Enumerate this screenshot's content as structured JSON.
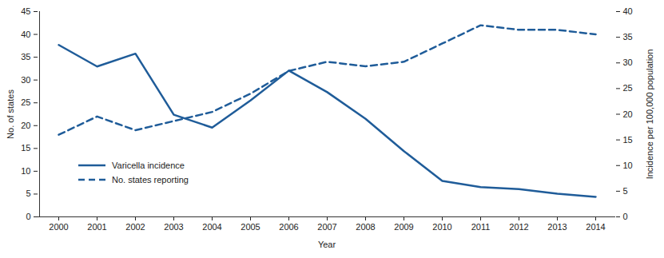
{
  "chart_data": {
    "type": "line",
    "x": [
      2000,
      2001,
      2002,
      2003,
      2004,
      2005,
      2006,
      2007,
      2008,
      2009,
      2010,
      2011,
      2012,
      2013,
      2014
    ],
    "xlabel": "Year",
    "ylabel": "No. of states",
    "y2label": "Incidence per 100,000 population",
    "ylim": [
      0,
      45
    ],
    "yticks": [
      0,
      5,
      10,
      15,
      20,
      25,
      30,
      35,
      40,
      45
    ],
    "y2lim": [
      0,
      40
    ],
    "y2ticks": [
      0,
      5,
      10,
      15,
      20,
      25,
      30,
      35,
      40
    ],
    "legend": "lower left",
    "series": [
      {
        "name": "Varicella incidence",
        "color": "#1f5c99",
        "line_style": "solid",
        "axis": "y2",
        "values": [
          33.5,
          29.3,
          31.8,
          19.9,
          17.4,
          22.7,
          28.5,
          24.3,
          19.1,
          12.8,
          7.0,
          5.8,
          5.4,
          4.5,
          3.9
        ]
      },
      {
        "name": "No. states reporting",
        "color": "#1f5c99",
        "line_style": "dashed",
        "values": [
          18,
          22,
          19,
          21,
          23,
          27,
          32,
          34,
          33,
          34,
          38,
          42,
          41,
          41,
          40
        ]
      }
    ]
  }
}
